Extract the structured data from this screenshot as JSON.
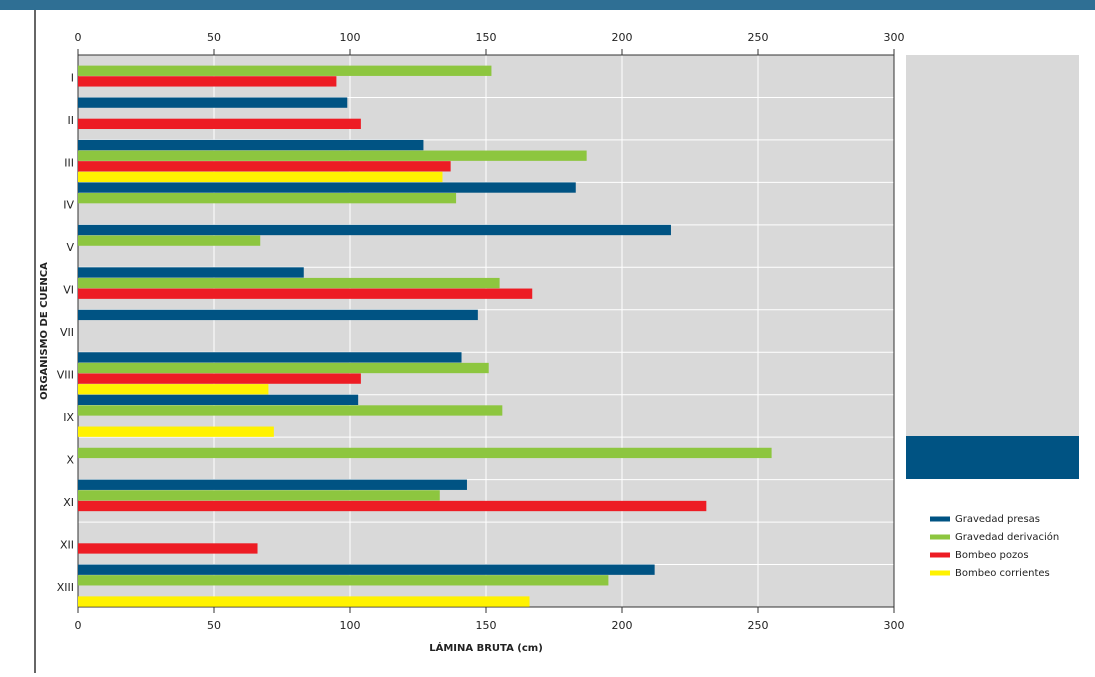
{
  "chart_data": {
    "type": "bar",
    "orientation": "horizontal",
    "x_label": "LÁMINA BRUTA (cm)",
    "y_label": "ORGANISMO DE CUENCA",
    "categories": [
      "I",
      "II",
      "III",
      "IV",
      "V",
      "VI",
      "VII",
      "VIII",
      "IX",
      "X",
      "XI",
      "XII",
      "XIII"
    ],
    "series": [
      {
        "name": "Gravedad presas",
        "color": "#005383",
        "values": [
          null,
          99,
          127,
          183,
          218,
          83,
          147,
          141,
          103,
          null,
          143,
          null,
          212
        ]
      },
      {
        "name": "Gravedad derivación",
        "color": "#8dc63f",
        "values": [
          152,
          null,
          187,
          139,
          67,
          155,
          null,
          151,
          156,
          255,
          133,
          null,
          195
        ]
      },
      {
        "name": "Bombeo pozos",
        "color": "#ed1c24",
        "values": [
          95,
          104,
          137,
          null,
          null,
          167,
          null,
          104,
          null,
          null,
          231,
          66,
          null
        ]
      },
      {
        "name": "Bombeo corrientes",
        "color": "#fff200",
        "values": [
          null,
          null,
          134,
          null,
          null,
          null,
          null,
          70,
          72,
          null,
          null,
          null,
          166
        ]
      }
    ],
    "xlim": [
      0,
      300
    ],
    "xticks": [
      0,
      50,
      100,
      150,
      200,
      250,
      300
    ],
    "grid": true,
    "legend": "lower-right"
  }
}
